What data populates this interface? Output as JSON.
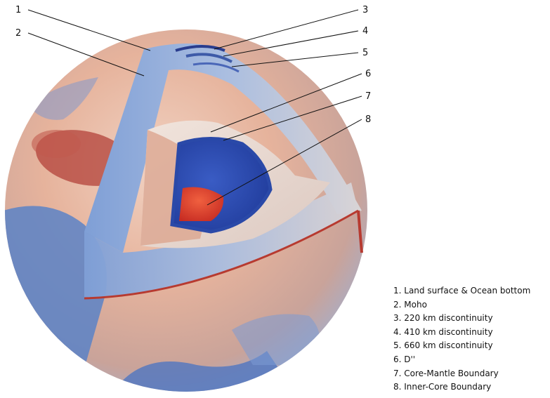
{
  "callouts": [
    {
      "id": "1",
      "label": "1"
    },
    {
      "id": "2",
      "label": "2"
    },
    {
      "id": "3",
      "label": "3"
    },
    {
      "id": "4",
      "label": "4"
    },
    {
      "id": "5",
      "label": "5"
    },
    {
      "id": "6",
      "label": "6"
    },
    {
      "id": "7",
      "label": "7"
    },
    {
      "id": "8",
      "label": "8"
    }
  ],
  "legend": [
    "1.  Land surface & Ocean bottom",
    "2.  Moho",
    "3.  220 km discontinuity",
    "4.  410 km discontinuity",
    "5.  660 km discontinuity",
    "6.  D''",
    "7.  Core-Mantle Boundary",
    "8.  Inner-Core Boundary"
  ],
  "colors": {
    "warm": "#e8b59c",
    "hot": "#b8302a",
    "cool": "#5b84c8",
    "deep_blue": "#2a49a8",
    "inner_core": "#e03a2a",
    "pale": "#efe3dc"
  }
}
